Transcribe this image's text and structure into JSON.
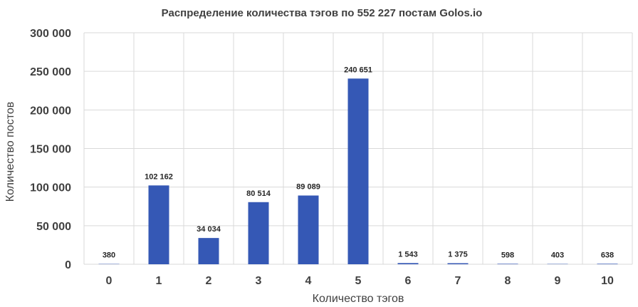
{
  "chart_data": {
    "type": "bar",
    "title": "Распределение количества тэгов по 552 227 постам Golos.io",
    "xlabel": "Количество тэгов",
    "ylabel": "Количество постов",
    "categories": [
      "0",
      "1",
      "2",
      "3",
      "4",
      "5",
      "6",
      "7",
      "8",
      "9",
      "10"
    ],
    "values": [
      380,
      102162,
      34034,
      80514,
      89089,
      240651,
      1543,
      1375,
      598,
      403,
      638
    ],
    "data_labels": [
      "380",
      "102 162",
      "34 034",
      "80 514",
      "89 089",
      "240 651",
      "1 543",
      "1 375",
      "598",
      "403",
      "638"
    ],
    "ylim": [
      0,
      300000
    ],
    "y_ticks": [
      0,
      50000,
      100000,
      150000,
      200000,
      250000,
      300000
    ],
    "y_tick_labels": [
      "0",
      "50 000",
      "100 000",
      "150 000",
      "200 000",
      "250 000",
      "300 000"
    ],
    "grid": true,
    "legend": "none",
    "bar_color": "#3558b5"
  }
}
